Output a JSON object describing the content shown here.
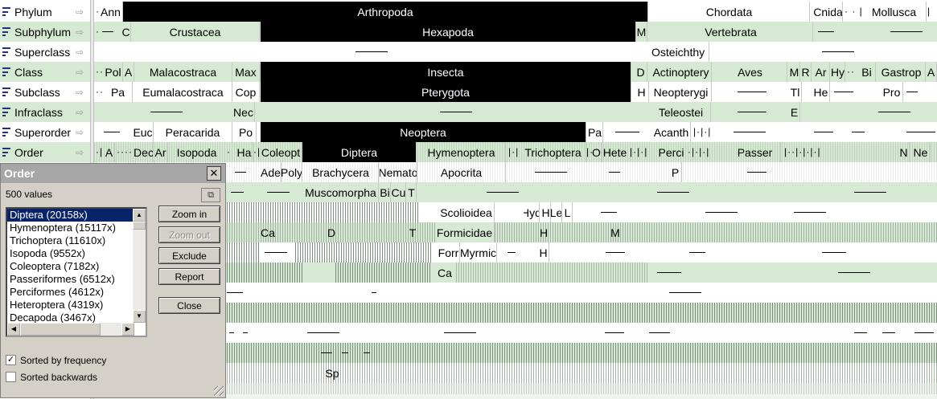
{
  "levels": [
    {
      "name": "Phylum"
    },
    {
      "name": "Subphylum"
    },
    {
      "name": "Superclass"
    },
    {
      "name": "Class"
    },
    {
      "name": "Subclass"
    },
    {
      "name": "Infraclass"
    },
    {
      "name": "Superorder"
    },
    {
      "name": "Order"
    }
  ],
  "cells": {
    "phylum": [
      "Ann",
      "Arthropoda",
      "Chordata",
      "Cnida",
      "Mollusca"
    ],
    "subphylum": [
      "C",
      "Crustacea",
      "Hexapoda",
      "M",
      "Vertebrata"
    ],
    "superclass": [
      "Osteichthy"
    ],
    "class": [
      "Pol",
      "A",
      "Malacostraca",
      "Max",
      "Insecta",
      "D",
      "Actinoptery",
      "Aves",
      "M",
      "R",
      "Ar",
      "Hy",
      "Bi",
      "Gastrop",
      "A"
    ],
    "subclass": [
      "Pa",
      "Eumalacostraca",
      "Cop",
      "Pterygota",
      "H",
      "Neopterygi",
      "Tl",
      "He",
      "Pro"
    ],
    "infraclass": [
      "Nec",
      "Teleostei",
      "E"
    ],
    "superorder": [
      "Euc",
      "Peracarida",
      "Po",
      "Neoptera",
      "Pa",
      "Acanth"
    ],
    "order": [
      "A",
      "Dec",
      "Ar",
      "Isopoda",
      "Ha",
      "Coleopt",
      "Diptera",
      "Hymenoptera",
      "Trichoptera",
      "O",
      "Hete",
      "Perci",
      "Passer",
      "N",
      "Ne"
    ],
    "suborder": [
      "Ade",
      "Poly",
      "Brachycera",
      "Nemato",
      "Apocrita",
      "P"
    ],
    "infraorder": [
      "Muscomorpha",
      "Bi",
      "Cu",
      "T"
    ],
    "superfamily": [
      "Scolioidea",
      "Hyd",
      "H",
      "Le",
      "L"
    ],
    "family": [
      "Ca",
      "D",
      "T",
      "Formicidae",
      "H",
      "M"
    ],
    "subfamily": [
      "Forr",
      "Myrmic",
      "H"
    ],
    "tribe": [
      "Ca"
    ],
    "genus": [
      "Sp"
    ]
  },
  "dialog": {
    "title": "Order",
    "count": "500 values",
    "copy_icon": "copy-icon",
    "items": [
      "Diptera   (20158x)",
      "Hymenoptera   (15117x)",
      "Trichoptera   (11610x)",
      "Isopoda   (9552x)",
      "Coleoptera   (7182x)",
      "Passeriformes   (6512x)",
      "Perciformes   (4612x)",
      "Heteroptera   (4319x)",
      "Decapoda   (3467x)"
    ],
    "buttons": {
      "zoom_in": "Zoom in",
      "zoom_out": "Zoom out",
      "exclude": "Exclude",
      "report": "Report",
      "close": "Close"
    },
    "sorted_by_frequency": "Sorted by frequency",
    "sorted_by_frequency_checked": true,
    "sorted_backwards": "Sorted backwards",
    "sorted_backwards_checked": false
  },
  "colors": {
    "band_alt": "#d6e9d2",
    "selected": "#000000",
    "dialog_bg": "#d4d0c8",
    "list_selection": "#0a246a"
  }
}
